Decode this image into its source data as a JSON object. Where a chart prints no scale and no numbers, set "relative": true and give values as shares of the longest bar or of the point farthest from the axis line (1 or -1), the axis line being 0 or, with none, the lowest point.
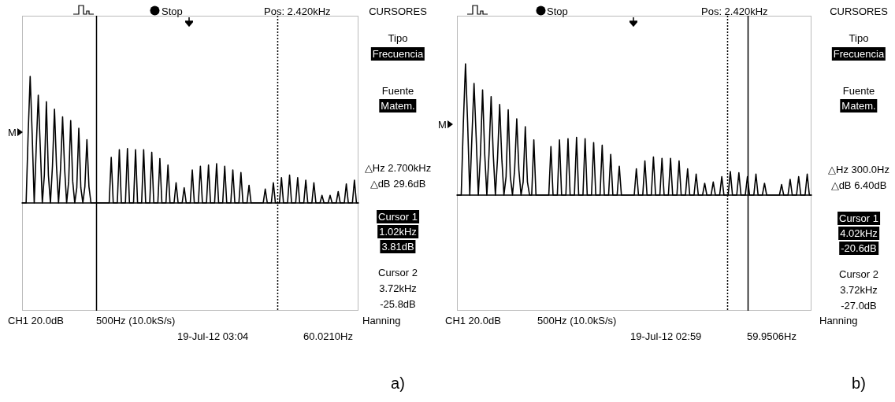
{
  "chart_data": [
    {
      "type": "line",
      "relative": true,
      "marker": "none",
      "categories": [
        null,
        null,
        null,
        null,
        null,
        null,
        null,
        null,
        null,
        null,
        null,
        null,
        null,
        null,
        null,
        null,
        null,
        null,
        null,
        null,
        null,
        null,
        null,
        null,
        null,
        null,
        null,
        null,
        null,
        null,
        null,
        null,
        null,
        null,
        null,
        null,
        null,
        null,
        null,
        null,
        null,
        null,
        null,
        null,
        null,
        null,
        null,
        null,
        null,
        null,
        null,
        null,
        null,
        null,
        null,
        null,
        null,
        null,
        null,
        null,
        null,
        null,
        null,
        null,
        null,
        null,
        null,
        null,
        null,
        null,
        null,
        null,
        null,
        null,
        null,
        null,
        null,
        null,
        null,
        null,
        null,
        null,
        null,
        null,
        null,
        null,
        null,
        null,
        null,
        null,
        null,
        null,
        null,
        null,
        null,
        null,
        null,
        null,
        null,
        null,
        null,
        null,
        null,
        null,
        null,
        null,
        null,
        null,
        null,
        null,
        null,
        null,
        null,
        null,
        null,
        null,
        null,
        null,
        null,
        null,
        null,
        null,
        null,
        null,
        null,
        null,
        null,
        null,
        null,
        null,
        null,
        null,
        null,
        null,
        null,
        null,
        null,
        null,
        null,
        null,
        null,
        null,
        null,
        null,
        null,
        null,
        null,
        null,
        null,
        null,
        null,
        null,
        null,
        null,
        null,
        null,
        null,
        null,
        null,
        null,
        null,
        null,
        null,
        null,
        null,
        null,
        null
      ],
      "series": [
        {
          "color": "#000000",
          "values": [
            0,
            0,
            0,
            0.54,
            1,
            0.54,
            0,
            0.44,
            0.85,
            0.44,
            0,
            0.22,
            0.8,
            0.22,
            0,
            0.29,
            0.74,
            0.29,
            0,
            0.27,
            0.68,
            0.27,
            0,
            0.17,
            0.65,
            0.17,
            0,
            0.12,
            0.59,
            0.12,
            0,
            0.13,
            0.5,
            0.13,
            0,
            0,
            0,
            0,
            0,
            0,
            0,
            0,
            0,
            0,
            0.36,
            0,
            0,
            0,
            0.42,
            0,
            0,
            0,
            0.43,
            0,
            0,
            0,
            0.42,
            0,
            0,
            0,
            0.42,
            0,
            0,
            0,
            0.4,
            0,
            0,
            0,
            0.35,
            0,
            0,
            0,
            0.3,
            0,
            0,
            0,
            0.16,
            0,
            0,
            0,
            0.12,
            0,
            0,
            0,
            0.26,
            0,
            0,
            0,
            0.29,
            0,
            0,
            0,
            0.3,
            0,
            0,
            0,
            0.31,
            0,
            0,
            0,
            0.29,
            0,
            0,
            0,
            0.26,
            0,
            0,
            0,
            0.24,
            0,
            0,
            0,
            0.14,
            0,
            0,
            0,
            0,
            0,
            0,
            0,
            0.11,
            0,
            0,
            0,
            0.16,
            0,
            0,
            0,
            0.2,
            0,
            0,
            0,
            0.22,
            0,
            0,
            0,
            0.2,
            0,
            0,
            0,
            0.18,
            0,
            0,
            0,
            0.16,
            0,
            0,
            0,
            0.06,
            0,
            0,
            0,
            0.06,
            0,
            0,
            0,
            0.09,
            0,
            0,
            0,
            0.15,
            0,
            0,
            0,
            0.18,
            0,
            0
          ]
        }
      ],
      "annotations": [
        "Stop",
        "Pos: 2.420kHz",
        "CURSORES",
        "Tipo",
        "Frecuencia",
        "Fuente",
        "Matem.",
        "△Hz 2.700kHz",
        "△dB 29.6dB",
        "Cursor 1",
        "1.02kHz",
        "3.81dB",
        "Cursor 2",
        "3.72kHz",
        "-25.8dB",
        "Hanning",
        "CH1 20.0dB",
        "500Hz (10.0kS/s)",
        "19-Jul-12 03:04",
        "60.0210Hz",
        "M",
        "a)"
      ]
    },
    {
      "type": "line",
      "relative": true,
      "marker": "none",
      "categories": [
        null,
        null,
        null,
        null,
        null,
        null,
        null,
        null,
        null,
        null,
        null,
        null,
        null,
        null,
        null,
        null,
        null,
        null,
        null,
        null,
        null,
        null,
        null,
        null,
        null,
        null,
        null,
        null,
        null,
        null,
        null,
        null,
        null,
        null,
        null,
        null,
        null,
        null,
        null,
        null,
        null,
        null,
        null,
        null,
        null,
        null,
        null,
        null,
        null,
        null,
        null,
        null,
        null,
        null,
        null,
        null,
        null,
        null,
        null,
        null,
        null,
        null,
        null,
        null,
        null,
        null,
        null,
        null,
        null,
        null,
        null,
        null,
        null,
        null,
        null,
        null,
        null,
        null,
        null,
        null,
        null,
        null,
        null,
        null,
        null,
        null,
        null,
        null,
        null,
        null,
        null,
        null,
        null,
        null,
        null,
        null,
        null,
        null,
        null,
        null,
        null,
        null,
        null,
        null,
        null,
        null,
        null,
        null,
        null,
        null,
        null,
        null,
        null,
        null,
        null,
        null,
        null,
        null,
        null,
        null,
        null,
        null,
        null,
        null,
        null,
        null,
        null,
        null,
        null,
        null,
        null,
        null,
        null,
        null,
        null,
        null,
        null,
        null,
        null,
        null,
        null,
        null,
        null,
        null,
        null,
        null,
        null,
        null,
        null,
        null,
        null,
        null,
        null,
        null,
        null,
        null,
        null,
        null,
        null,
        null,
        null,
        null,
        null,
        null,
        null,
        null,
        null
      ],
      "series": [
        {
          "color": "#000000",
          "values": [
            0,
            0,
            0,
            0.55,
            1,
            0.55,
            0,
            0.44,
            0.85,
            0.44,
            0,
            0.31,
            0.8,
            0.31,
            0,
            0.31,
            0.75,
            0.31,
            0,
            0.28,
            0.69,
            0.28,
            0,
            0.14,
            0.65,
            0.14,
            0,
            0.19,
            0.58,
            0.19,
            0,
            0.1,
            0.52,
            0.1,
            0,
            0,
            0.42,
            0,
            0,
            0,
            0,
            0,
            0,
            0,
            0.37,
            0,
            0,
            0,
            0.42,
            0,
            0,
            0,
            0.43,
            0,
            0,
            0,
            0.44,
            0,
            0,
            0,
            0.43,
            0,
            0,
            0,
            0.4,
            0,
            0,
            0,
            0.38,
            0,
            0,
            0,
            0.31,
            0,
            0,
            0,
            0.22,
            0,
            0,
            0,
            0,
            0,
            0,
            0,
            0.2,
            0,
            0,
            0,
            0.26,
            0,
            0,
            0,
            0.29,
            0,
            0,
            0,
            0.28,
            0,
            0,
            0,
            0.28,
            0,
            0,
            0,
            0.26,
            0,
            0,
            0,
            0.2,
            0,
            0,
            0,
            0.16,
            0,
            0,
            0,
            0.09,
            0,
            0,
            0,
            0.1,
            0,
            0,
            0,
            0.14,
            0,
            0,
            0,
            0.18,
            0,
            0,
            0,
            0.17,
            0,
            0,
            0,
            0.14,
            0,
            0,
            0,
            0.16,
            0,
            0,
            0,
            0.09,
            0,
            0,
            0,
            0,
            0,
            0,
            0,
            0.08,
            0,
            0,
            0,
            0.12,
            0,
            0,
            0,
            0.14,
            0,
            0,
            0,
            0.16,
            0,
            0
          ]
        }
      ],
      "annotations": [
        "Stop",
        "Pos: 2.420kHz",
        "CURSORES",
        "Tipo",
        "Frecuencia",
        "Fuente",
        "Matem.",
        "△Hz 300.0Hz",
        "△dB 6.40dB",
        "Cursor 1",
        "4.02kHz",
        "-20.6dB",
        "Cursor 2",
        "3.72kHz",
        "-27.0dB",
        "Hanning",
        "CH1 20.0dB",
        "500Hz (10.0kS/s)",
        "19-Jul-12 02:59",
        "59.9506Hz",
        "M",
        "b)"
      ]
    }
  ]
}
